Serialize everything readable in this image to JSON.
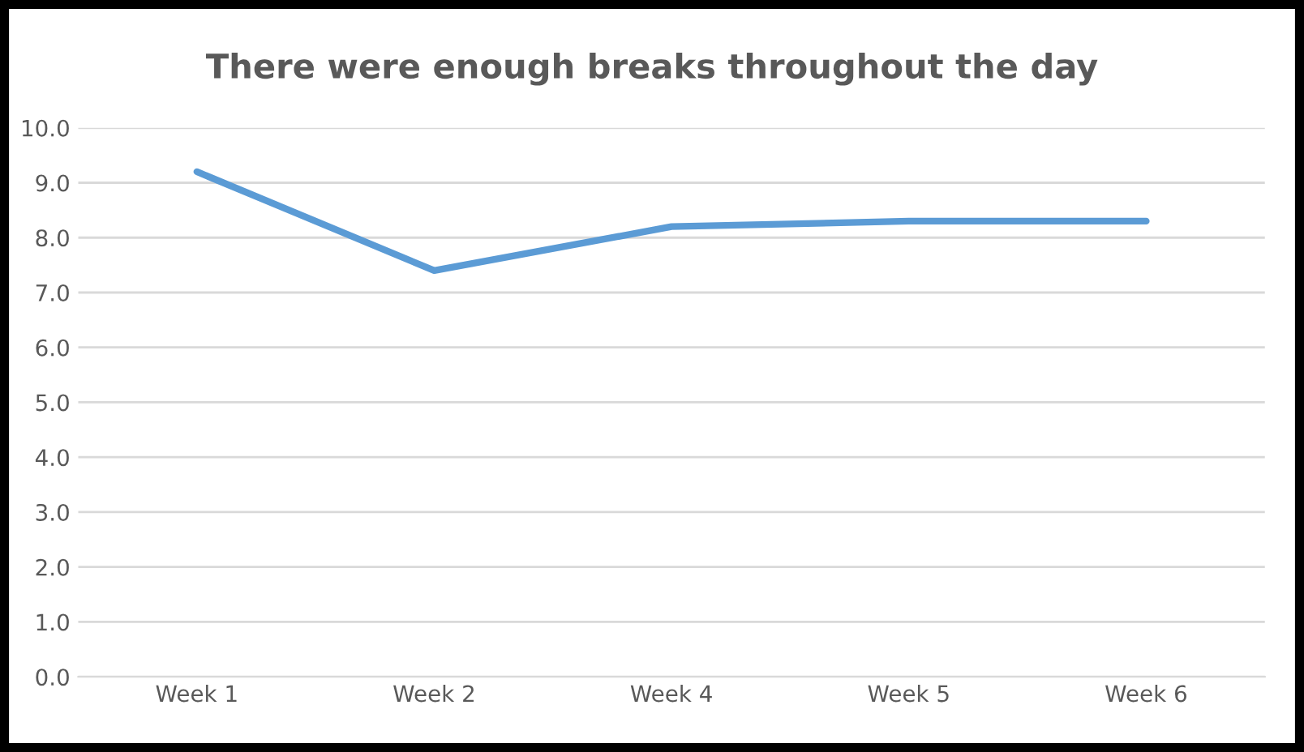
{
  "chart_data": {
    "type": "line",
    "title": "There were enough breaks throughout the day",
    "categories": [
      "Week 1",
      "Week 2",
      "Week 4",
      "Week 5",
      "Week 6"
    ],
    "series": [
      {
        "color": "#5b9bd5",
        "values": [
          9.2,
          7.4,
          8.2,
          8.3,
          8.3
        ]
      }
    ],
    "ylim": [
      0,
      10
    ],
    "yticks": [
      {
        "value": 0,
        "label": "0.0"
      },
      {
        "value": 1,
        "label": "1.0"
      },
      {
        "value": 2,
        "label": "2.0"
      },
      {
        "value": 3,
        "label": "3.0"
      },
      {
        "value": 4,
        "label": "4.0"
      },
      {
        "value": 5,
        "label": "5.0"
      },
      {
        "value": 6,
        "label": "6.0"
      },
      {
        "value": 7,
        "label": "7.0"
      },
      {
        "value": 8,
        "label": "8.0"
      },
      {
        "value": 9,
        "label": "9.0"
      },
      {
        "value": 10,
        "label": "10.0"
      }
    ],
    "grid": "y",
    "legend": false,
    "marker": "none",
    "line_style": "solid"
  }
}
